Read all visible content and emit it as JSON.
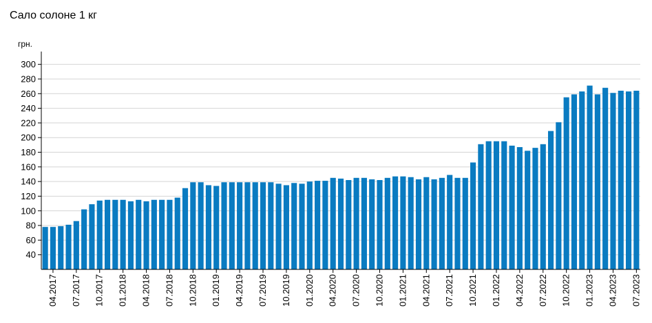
{
  "chart_data": {
    "type": "bar",
    "title": "Сало солоне 1 кг",
    "ylabel": "грн.",
    "xlabel": "",
    "ylim": [
      20,
      310
    ],
    "yticks": [
      40,
      60,
      80,
      100,
      120,
      140,
      160,
      180,
      200,
      220,
      240,
      260,
      280,
      300
    ],
    "grid": true,
    "bar_color": "#0a7bc1",
    "x_tick_labels": [
      "04.2017",
      "07.2017",
      "10.2017",
      "01.2018",
      "04.2018",
      "07.2018",
      "10.2018",
      "01.2019",
      "04.2019",
      "07.2019",
      "10.2019",
      "01.2020",
      "04.2020",
      "07.2020",
      "10.2020",
      "01.2021",
      "04.2021",
      "07.2021",
      "10.2021",
      "01.2022",
      "04.2022",
      "07.2022",
      "10.2022",
      "01.2023",
      "04.2023",
      "07.2023"
    ],
    "categories": [
      "03.2017",
      "04.2017",
      "05.2017",
      "06.2017",
      "07.2017",
      "08.2017",
      "09.2017",
      "10.2017",
      "11.2017",
      "12.2017",
      "01.2018",
      "02.2018",
      "03.2018",
      "04.2018",
      "05.2018",
      "06.2018",
      "07.2018",
      "08.2018",
      "09.2018",
      "10.2018",
      "11.2018",
      "12.2018",
      "01.2019",
      "02.2019",
      "03.2019",
      "04.2019",
      "05.2019",
      "06.2019",
      "07.2019",
      "08.2019",
      "09.2019",
      "10.2019",
      "11.2019",
      "12.2019",
      "01.2020",
      "02.2020",
      "03.2020",
      "04.2020",
      "05.2020",
      "06.2020",
      "07.2020",
      "08.2020",
      "09.2020",
      "10.2020",
      "11.2020",
      "12.2020",
      "01.2021",
      "02.2021",
      "03.2021",
      "04.2021",
      "05.2021",
      "06.2021",
      "07.2021",
      "08.2021",
      "09.2021",
      "10.2021",
      "11.2021",
      "12.2021",
      "01.2022",
      "02.2022",
      "03.2022",
      "04.2022",
      "05.2022",
      "06.2022",
      "07.2022",
      "08.2022",
      "09.2022",
      "10.2022",
      "11.2022",
      "12.2022",
      "01.2023",
      "02.2023",
      "03.2023",
      "04.2023",
      "05.2023",
      "06.2023",
      "07.2023"
    ],
    "values": [
      78,
      78,
      79,
      81,
      86,
      102,
      109,
      114,
      115,
      115,
      115,
      113,
      115,
      113,
      115,
      115,
      115,
      118,
      131,
      139,
      139,
      135,
      134,
      139,
      139,
      139,
      139,
      139,
      139,
      139,
      137,
      135,
      138,
      137,
      140,
      141,
      141,
      145,
      144,
      142,
      145,
      145,
      143,
      142,
      145,
      147,
      147,
      146,
      143,
      146,
      143,
      145,
      149,
      145,
      145,
      166,
      191,
      195,
      195,
      195,
      189,
      187,
      182,
      186,
      191,
      209,
      221,
      255,
      259,
      263,
      271,
      259,
      268,
      261,
      264,
      263,
      264
    ]
  }
}
